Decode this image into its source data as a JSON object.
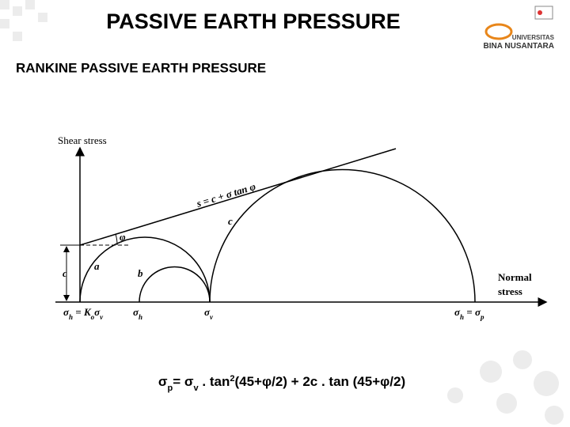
{
  "header": {
    "title": "PASSIVE EARTH PRESSURE",
    "subtitle": "RANKINE PASSIVE EARTH PRESSURE"
  },
  "logo": {
    "line1": "UNIVERSITAS",
    "line2": "BINA NUSANTARA"
  },
  "diagram": {
    "y_axis_label": "Shear stress",
    "x_axis_label": [
      "Normal",
      "stress"
    ],
    "envelope_label": "s = c + σ tan φ",
    "angle_label": "φ",
    "intercept_label": "c",
    "circle_labels": [
      "a",
      "b",
      "c"
    ],
    "x_labels": [
      [
        "σ",
        "h",
        " = K",
        "o",
        "σ",
        "v"
      ],
      [
        "σ",
        "h"
      ],
      [
        "σ",
        "v"
      ],
      [
        "σ",
        "h",
        " = σ",
        "p"
      ]
    ]
  },
  "formula": [
    "σ",
    "p",
    "= σ",
    "v",
    " . tan",
    "2",
    "(45+φ/2) + 2c . tan (45+φ/2)"
  ]
}
